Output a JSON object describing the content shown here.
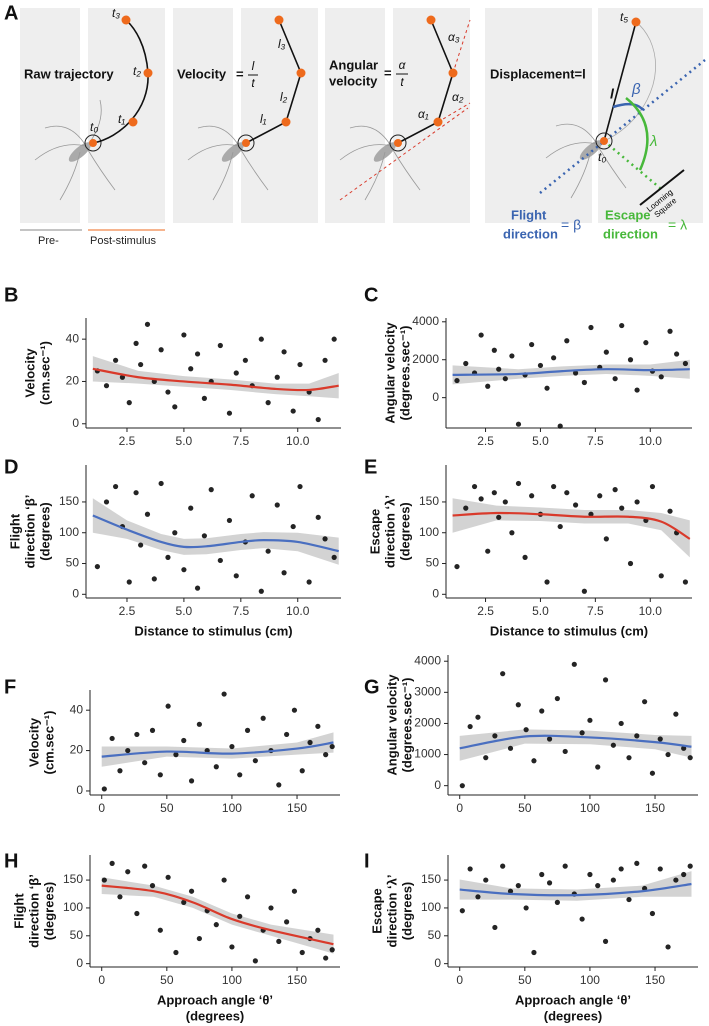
{
  "panel_a": {
    "letter": "A",
    "raw_title": "Raw trajectory",
    "t_labels": [
      "t₃",
      "t₂",
      "t₁",
      "t₀"
    ],
    "pre": "Pre-",
    "post": "Post-stimulus",
    "velocity": "Velocity",
    "eq": "=",
    "l": "l",
    "t": "t",
    "l_labels": [
      "l₃",
      "l₂",
      "l₁"
    ],
    "angular": [
      "Angular",
      "velocity"
    ],
    "alpha": "α",
    "alpha_labels": [
      "α₃",
      "α₂",
      "α₁"
    ],
    "displacement": "Displacement=l",
    "t5": "t₅",
    "t0": "t₀",
    "beta": "β",
    "lambda": "λ",
    "looming": [
      "Looming",
      "Square"
    ],
    "flight": [
      "Flight",
      "direction"
    ],
    "flight_eq": "= β",
    "escape": [
      "Escape",
      "direction"
    ],
    "escape_eq": "= λ"
  },
  "chart_data": [
    {
      "type": "scatter",
      "panel": "B",
      "ylabel": [
        "Velocity",
        "(cm.sec⁻¹)"
      ],
      "xlim": [
        0.7,
        11.9
      ],
      "xticks": [
        2.5,
        {
          "value": 5,
          "label": "5.0"
        },
        7.5,
        {
          "value": 10,
          "label": "10.0"
        }
      ],
      "ylim": [
        -2,
        50
      ],
      "yticks": [
        0,
        20,
        40
      ],
      "color": "#111111",
      "x": [
        1.2,
        1.6,
        2.0,
        2.3,
        2.6,
        2.9,
        3.1,
        3.4,
        3.7,
        4.0,
        4.3,
        4.6,
        5.0,
        5.3,
        5.6,
        5.9,
        6.2,
        6.6,
        7.0,
        7.3,
        7.7,
        8.0,
        8.4,
        8.7,
        9.1,
        9.4,
        9.8,
        10.1,
        10.5,
        10.9,
        11.2,
        11.6
      ],
      "values": [
        25,
        18,
        30,
        22,
        10,
        38,
        28,
        47,
        20,
        35,
        15,
        8,
        42,
        26,
        33,
        12,
        20,
        37,
        5,
        24,
        30,
        18,
        40,
        10,
        22,
        34,
        6,
        28,
        15,
        2,
        30,
        40
      ],
      "fit": {
        "color": "#d93a2b",
        "x": [
          1,
          3,
          5,
          7,
          9,
          10.5,
          11.8
        ],
        "values": [
          26,
          22,
          20,
          18.5,
          16.5,
          16,
          18
        ],
        "lower": [
          20,
          19,
          17.5,
          16,
          14,
          13,
          12
        ],
        "upper": [
          32,
          25,
          22.5,
          21,
          19,
          19,
          24
        ]
      }
    },
    {
      "type": "scatter",
      "panel": "C",
      "ylabel": [
        "Angular velocity",
        "(degrees.sec⁻¹)"
      ],
      "xlim": [
        0.7,
        11.9
      ],
      "xticks": [
        2.5,
        {
          "value": 5,
          "label": "5.0"
        },
        7.5,
        {
          "value": 10,
          "label": "10.0"
        }
      ],
      "ylim": [
        -1600,
        4200
      ],
      "yticks": [
        0,
        2000,
        4000
      ],
      "color": "#111111",
      "x": [
        1.2,
        1.6,
        2.0,
        2.3,
        2.6,
        2.9,
        3.1,
        3.4,
        3.7,
        4.0,
        4.3,
        4.6,
        5.0,
        5.3,
        5.6,
        5.9,
        6.2,
        6.6,
        7.0,
        7.3,
        7.7,
        8.0,
        8.4,
        8.7,
        9.1,
        9.4,
        9.8,
        10.1,
        10.5,
        10.9,
        11.2,
        11.6
      ],
      "values": [
        900,
        1800,
        1300,
        3300,
        600,
        2500,
        1500,
        1000,
        2200,
        -1400,
        1200,
        2800,
        1700,
        500,
        2100,
        -1500,
        3000,
        1300,
        800,
        3700,
        1600,
        2400,
        1000,
        3800,
        2000,
        400,
        2900,
        1400,
        1100,
        3500,
        2300,
        1800
      ],
      "fit": {
        "color": "#4a6fc0",
        "x": [
          1,
          4,
          6,
          8,
          10,
          11.8
        ],
        "values": [
          1200,
          1250,
          1400,
          1500,
          1450,
          1500
        ],
        "lower": [
          700,
          1000,
          1150,
          1250,
          1150,
          1000
        ],
        "upper": [
          1700,
          1500,
          1650,
          1750,
          1750,
          2000
        ]
      }
    },
    {
      "type": "scatter",
      "panel": "D",
      "ylabel": [
        "Flight",
        "direction ‘β’",
        "(degrees)"
      ],
      "xlabel": [
        "Distance to stimulus (cm)"
      ],
      "xlim": [
        0.7,
        11.9
      ],
      "xticks": [
        2.5,
        {
          "value": 5,
          "label": "5.0"
        },
        7.5,
        {
          "value": 10,
          "label": "10.0"
        }
      ],
      "ylim": [
        -6,
        210
      ],
      "yticks": [
        0,
        50,
        100,
        150
      ],
      "color": "#111111",
      "x": [
        1.2,
        1.6,
        2.0,
        2.3,
        2.6,
        2.9,
        3.1,
        3.4,
        3.7,
        4.0,
        4.3,
        4.6,
        5.0,
        5.3,
        5.6,
        5.9,
        6.2,
        6.6,
        7.0,
        7.3,
        7.7,
        8.0,
        8.4,
        8.7,
        9.1,
        9.4,
        9.8,
        10.1,
        10.5,
        10.9,
        11.2,
        11.6
      ],
      "values": [
        45,
        150,
        175,
        110,
        20,
        165,
        80,
        130,
        25,
        180,
        60,
        100,
        40,
        140,
        10,
        95,
        170,
        55,
        120,
        30,
        85,
        160,
        5,
        70,
        145,
        35,
        110,
        175,
        20,
        125,
        90,
        60
      ],
      "fit": {
        "color": "#4a6fc0",
        "x": [
          1,
          2.5,
          4,
          5,
          6,
          7.5,
          8.5,
          10,
          11.8
        ],
        "values": [
          128,
          105,
          85,
          77,
          78,
          85,
          88,
          85,
          70
        ],
        "lower": [
          100,
          90,
          72,
          64,
          65,
          72,
          75,
          70,
          48
        ],
        "upper": [
          156,
          120,
          98,
          90,
          91,
          98,
          101,
          100,
          92
        ]
      }
    },
    {
      "type": "scatter",
      "panel": "E",
      "ylabel": [
        "Escape",
        "direction ‘λ’",
        "(degrees)"
      ],
      "xlabel": [
        "Distance to stimulus (cm)"
      ],
      "xlim": [
        0.7,
        11.9
      ],
      "xticks": [
        2.5,
        {
          "value": 5,
          "label": "5.0"
        },
        7.5,
        {
          "value": 10,
          "label": "10.0"
        }
      ],
      "ylim": [
        -6,
        210
      ],
      "yticks": [
        0,
        50,
        100,
        150
      ],
      "color": "#111111",
      "x": [
        1.2,
        1.6,
        2.0,
        2.3,
        2.6,
        2.9,
        3.1,
        3.4,
        3.7,
        4.0,
        4.3,
        4.6,
        5.0,
        5.3,
        5.6,
        5.9,
        6.2,
        6.6,
        7.0,
        7.3,
        7.7,
        8.0,
        8.4,
        8.7,
        9.1,
        9.4,
        9.8,
        10.1,
        10.5,
        10.9,
        11.2,
        11.6
      ],
      "values": [
        45,
        140,
        175,
        155,
        70,
        165,
        125,
        150,
        100,
        180,
        60,
        160,
        130,
        20,
        175,
        110,
        165,
        145,
        5,
        130,
        160,
        90,
        170,
        140,
        50,
        150,
        120,
        175,
        30,
        135,
        100,
        20
      ],
      "fit": {
        "color": "#d93a2b",
        "x": [
          1,
          3,
          5,
          7,
          9,
          10.5,
          11.8
        ],
        "values": [
          128,
          132,
          130,
          126,
          126,
          118,
          90
        ],
        "lower": [
          100,
          120,
          119,
          115,
          115,
          104,
          60
        ],
        "upper": [
          156,
          144,
          141,
          137,
          137,
          132,
          120
        ]
      }
    },
    {
      "type": "scatter",
      "panel": "F",
      "ylabel": [
        "Velocity",
        "(cm.sec⁻¹)"
      ],
      "xlim": [
        -9,
        183
      ],
      "xticks": [
        0,
        50,
        100,
        150
      ],
      "ylim": [
        -2,
        50
      ],
      "yticks": [
        0,
        20,
        40
      ],
      "color": "#111111",
      "x": [
        2,
        8,
        14,
        20,
        27,
        33,
        39,
        45,
        51,
        57,
        63,
        69,
        75,
        81,
        88,
        94,
        100,
        106,
        112,
        118,
        124,
        130,
        136,
        142,
        148,
        154,
        160,
        166,
        172,
        177
      ],
      "values": [
        1,
        26,
        10,
        20,
        28,
        14,
        30,
        8,
        42,
        18,
        25,
        5,
        33,
        20,
        12,
        48,
        22,
        8,
        30,
        15,
        36,
        20,
        3,
        28,
        40,
        10,
        24,
        32,
        18,
        22
      ],
      "fit": {
        "color": "#4a6fc0",
        "x": [
          0,
          50,
          100,
          150,
          178
        ],
        "values": [
          17,
          19.5,
          18.5,
          21,
          24
        ],
        "lower": [
          12,
          17,
          16,
          18,
          19
        ],
        "upper": [
          22,
          22,
          21,
          24,
          29
        ]
      }
    },
    {
      "type": "scatter",
      "panel": "G",
      "ylabel": [
        "Angular velocity",
        "(degrees.sec⁻¹)"
      ],
      "xlim": [
        -9,
        183
      ],
      "xticks": [
        0,
        50,
        100,
        150
      ],
      "ylim": [
        -300,
        4200
      ],
      "yticks": [
        0,
        1000,
        2000,
        3000,
        4000
      ],
      "color": "#111111",
      "x": [
        2,
        8,
        14,
        20,
        27,
        33,
        39,
        45,
        51,
        57,
        63,
        69,
        75,
        81,
        88,
        94,
        100,
        106,
        112,
        118,
        124,
        130,
        136,
        142,
        148,
        154,
        160,
        166,
        172,
        177
      ],
      "values": [
        0,
        1900,
        2200,
        900,
        1600,
        3600,
        1200,
        2600,
        1800,
        800,
        2400,
        1500,
        2800,
        1100,
        3900,
        1700,
        2100,
        600,
        3400,
        1300,
        2000,
        900,
        1600,
        2700,
        400,
        1500,
        1000,
        2300,
        1200,
        900
      ],
      "fit": {
        "color": "#4a6fc0",
        "x": [
          0,
          50,
          100,
          150,
          178
        ],
        "values": [
          1200,
          1580,
          1550,
          1400,
          1250
        ],
        "lower": [
          800,
          1350,
          1330,
          1170,
          900
        ],
        "upper": [
          1600,
          1810,
          1770,
          1630,
          1600
        ]
      }
    },
    {
      "type": "scatter",
      "panel": "H",
      "ylabel": [
        "Flight",
        "direction ‘β’",
        "(degrees)"
      ],
      "xlabel": [
        "Approach angle ‘θ’",
        "(degrees)"
      ],
      "xlim": [
        -9,
        183
      ],
      "xticks": [
        0,
        50,
        100,
        150
      ],
      "ylim": [
        -6,
        195
      ],
      "yticks": [
        0,
        50,
        100,
        150
      ],
      "color": "#111111",
      "x": [
        2,
        8,
        14,
        20,
        27,
        33,
        39,
        45,
        51,
        57,
        63,
        69,
        75,
        81,
        88,
        94,
        100,
        106,
        112,
        118,
        124,
        130,
        136,
        142,
        148,
        154,
        160,
        166,
        172,
        177
      ],
      "values": [
        150,
        180,
        120,
        165,
        90,
        175,
        140,
        60,
        155,
        20,
        110,
        130,
        45,
        95,
        70,
        150,
        30,
        85,
        120,
        5,
        60,
        100,
        40,
        75,
        130,
        20,
        45,
        60,
        10,
        25
      ],
      "fit": {
        "color": "#d93a2b",
        "x": [
          0,
          40,
          70,
          100,
          130,
          178
        ],
        "values": [
          140,
          130,
          110,
          80,
          60,
          35
        ],
        "lower": [
          125,
          120,
          100,
          70,
          50,
          18
        ],
        "upper": [
          155,
          140,
          120,
          90,
          70,
          52
        ]
      }
    },
    {
      "type": "scatter",
      "panel": "I",
      "ylabel": [
        "Escape",
        "direction ‘λ’",
        "(degrees)"
      ],
      "xlabel": [
        "Approach angle ‘θ’",
        "(degrees)"
      ],
      "xlim": [
        -9,
        183
      ],
      "xticks": [
        0,
        50,
        100,
        150
      ],
      "ylim": [
        -6,
        195
      ],
      "yticks": [
        0,
        50,
        100,
        150
      ],
      "color": "#111111",
      "x": [
        2,
        8,
        14,
        20,
        27,
        33,
        39,
        45,
        51,
        57,
        63,
        69,
        75,
        81,
        88,
        94,
        100,
        106,
        112,
        118,
        124,
        130,
        136,
        142,
        148,
        154,
        160,
        166,
        172,
        177
      ],
      "values": [
        95,
        170,
        120,
        150,
        65,
        175,
        130,
        140,
        100,
        20,
        160,
        145,
        110,
        175,
        125,
        80,
        160,
        140,
        40,
        150,
        170,
        115,
        180,
        135,
        90,
        170,
        30,
        150,
        160,
        175
      ],
      "fit": {
        "color": "#4a6fc0",
        "x": [
          0,
          40,
          90,
          140,
          178
        ],
        "values": [
          133,
          125,
          123,
          130,
          143
        ],
        "lower": [
          115,
          115,
          113,
          120,
          120
        ],
        "upper": [
          151,
          135,
          133,
          140,
          166
        ]
      }
    }
  ]
}
